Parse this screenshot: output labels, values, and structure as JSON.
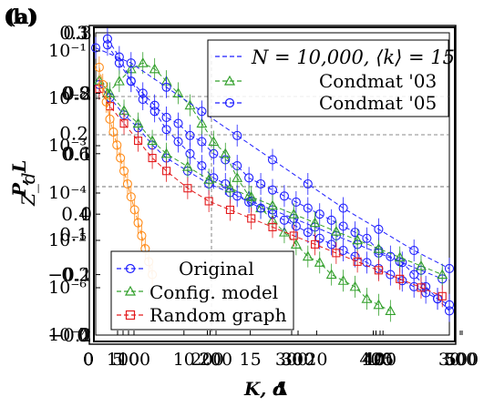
{
  "panel_labels": [
    "(b)",
    "(a)"
  ],
  "chart_data": [
    {
      "type": "line",
      "layer": "Z_d vs d",
      "title": "",
      "xlabel": "d",
      "ylabel": "Z_d",
      "xlim": [
        0,
        30
      ],
      "ylim": [
        -0.2,
        0.3
      ],
      "yticks": [
        "0.3",
        "0.2",
        "0.1",
        "0",
        "−0.1",
        "−0.2"
      ],
      "xticks": [
        "0",
        "5",
        "10",
        "15",
        "20",
        "25",
        "30"
      ],
      "grid": false,
      "legend_loc": "top-right",
      "legend": [
        {
          "label": "N = 10,000, ⟨k⟩ = 15",
          "color": "#1f1fff",
          "marker": "none"
        },
        {
          "label": "Condmat '03",
          "color": "#33a02c",
          "marker": "triangle"
        },
        {
          "label": "Condmat '05",
          "color": "#1f1fff",
          "marker": "circle"
        }
      ],
      "series": [
        {
          "name": "N = 10,000, ⟨k⟩ = 15",
          "color": "#1f1fff",
          "x": [
            1,
            2,
            3,
            4,
            5,
            6,
            7,
            8,
            9,
            10,
            11,
            12,
            13,
            14,
            15,
            16,
            17,
            18,
            19,
            20,
            21,
            22,
            23,
            24,
            25,
            26,
            27,
            28,
            29,
            30
          ],
          "y": [
            0.28,
            0.25,
            0.22,
            0.2,
            0.18,
            0.16,
            0.15,
            0.13,
            0.12,
            0.1,
            0.09,
            0.08,
            0.06,
            0.05,
            0.04,
            0.03,
            0.02,
            0.01,
            0.0,
            -0.01,
            -0.02,
            -0.03,
            -0.04,
            -0.06,
            -0.07,
            -0.08,
            -0.1,
            -0.12,
            -0.14,
            -0.16
          ]
        },
        {
          "name": "Condmat '03",
          "color": "#33a02c",
          "x": [
            1,
            2,
            3,
            4,
            5,
            6,
            7,
            8,
            9,
            10,
            11,
            12,
            13,
            14,
            15,
            16,
            17,
            18,
            19,
            20,
            21,
            22,
            23,
            24,
            25
          ],
          "y": [
            0.2,
            0.22,
            0.24,
            0.25,
            0.24,
            0.22,
            0.2,
            0.18,
            0.15,
            0.12,
            0.1,
            0.06,
            0.03,
            0.01,
            -0.01,
            -0.03,
            -0.05,
            -0.07,
            -0.08,
            -0.1,
            -0.11,
            -0.12,
            -0.14,
            -0.15,
            -0.16
          ]
        },
        {
          "name": "Condmat '05",
          "color": "#1f1fff",
          "x": [
            1,
            2,
            3,
            4,
            5,
            6,
            7,
            8,
            9,
            10,
            11,
            12,
            13,
            14,
            15,
            16,
            17,
            18,
            19,
            20,
            21,
            22,
            23,
            24,
            25,
            26,
            27,
            28,
            29,
            30
          ],
          "y": [
            0.29,
            0.26,
            0.22,
            0.19,
            0.17,
            0.14,
            0.12,
            0.1,
            0.08,
            0.06,
            0.05,
            0.03,
            0.02,
            0.01,
            0.0,
            -0.01,
            -0.02,
            -0.03,
            -0.04,
            -0.05,
            -0.06,
            -0.07,
            -0.08,
            -0.09,
            -0.1,
            -0.11,
            -0.12,
            -0.13,
            -0.14,
            -0.15
          ]
        }
      ]
    },
    {
      "type": "line",
      "layer": "P vs K",
      "title": "",
      "xlabel": "K",
      "ylabel": "P",
      "xlim": [
        0,
        500
      ],
      "ylim_log10": [
        -7,
        0
      ],
      "yticks": [
        "10⁻¹",
        "10⁻²",
        "10⁻³",
        "10⁻⁴",
        "10⁻⁵",
        "10⁻⁶",
        "10⁻⁷"
      ],
      "xticks": [
        "0",
        "100",
        "200",
        "300",
        "400",
        "500"
      ],
      "grid": false,
      "legend_loc": "bottom-left",
      "legend": [
        {
          "label": "Original",
          "color": "#1f1fff",
          "marker": "circle"
        },
        {
          "label": "Config. model",
          "color": "#33a02c",
          "marker": "triangle"
        },
        {
          "label": "Random graph",
          "color": "#e31a1c",
          "marker": "square"
        }
      ],
      "series": [
        {
          "name": "Original",
          "color": "#1f1fff",
          "x": [
            5,
            20,
            40,
            60,
            80,
            100,
            130,
            160,
            190,
            220,
            250,
            280,
            310,
            340,
            370,
            400,
            430,
            460,
            490
          ],
          "y_log10": [
            -1.2,
            -1.5,
            -1.9,
            -2.2,
            -2.6,
            -2.9,
            -3.2,
            -3.5,
            -3.7,
            -3.9,
            -4.1,
            -4.3,
            -4.5,
            -4.7,
            -4.9,
            -5.1,
            -5.3,
            -5.5,
            -5.7
          ]
        },
        {
          "name": "Config. model",
          "color": "#33a02c",
          "x": [
            5,
            20,
            40,
            60,
            80,
            100,
            130,
            160,
            190,
            220,
            250,
            280,
            310,
            340,
            370,
            400,
            430,
            460,
            490
          ],
          "y_log10": [
            -1.1,
            -1.4,
            -1.8,
            -2.1,
            -2.5,
            -2.8,
            -3.1,
            -3.4,
            -3.6,
            -3.8,
            -4.0,
            -4.2,
            -4.4,
            -4.6,
            -4.8,
            -5.0,
            -5.2,
            -5.4,
            -5.6
          ]
        },
        {
          "name": "Random graph",
          "color": "#e31a1c",
          "x": [
            5,
            20,
            40,
            60,
            80,
            100,
            130,
            160,
            190,
            220,
            250,
            280,
            310,
            340,
            370,
            400,
            430,
            460,
            490
          ],
          "y_log10": [
            -1.3,
            -1.7,
            -2.1,
            -2.5,
            -2.9,
            -3.2,
            -3.6,
            -3.9,
            -4.1,
            -4.3,
            -4.5,
            -4.7,
            -4.9,
            -5.1,
            -5.3,
            -5.5,
            -5.7,
            -5.9,
            -6.1
          ]
        },
        {
          "name": "",
          "color": "#ff8c1a",
          "x": [
            5,
            10,
            15,
            20,
            25,
            30,
            35,
            40,
            45,
            50,
            55,
            60,
            65,
            70,
            75,
            80
          ],
          "y_log10": [
            -0.8,
            -1.2,
            -1.6,
            -2.0,
            -2.3,
            -2.6,
            -2.9,
            -3.2,
            -3.5,
            -3.8,
            -4.1,
            -4.4,
            -4.7,
            -5.0,
            -5.3,
            -5.6
          ]
        }
      ]
    },
    {
      "type": "line",
      "layer": "L vs Δ",
      "title": "",
      "xlabel": "Δ",
      "ylabel": "L",
      "xlim": [
        0,
        50
      ],
      "ylim": [
        0,
        1
      ],
      "yticks": [
        "1",
        "0.8",
        "0.6",
        "0.4",
        "0.2",
        "0"
      ],
      "xticks": [
        "0",
        "10",
        "20",
        "30",
        "40",
        "50"
      ],
      "grid": false,
      "series": [
        {
          "name": "",
          "color": "#1f1fff",
          "x": [
            0,
            5,
            10,
            15,
            20,
            25,
            30,
            35,
            40,
            45,
            50
          ],
          "y": [
            0.95,
            0.9,
            0.82,
            0.74,
            0.66,
            0.58,
            0.5,
            0.42,
            0.35,
            0.28,
            0.22
          ]
        }
      ]
    },
    {
      "type": "line",
      "layer": "y vs x",
      "title": "",
      "xlabel": "",
      "ylabel": "y",
      "xlim": [
        0,
        500
      ],
      "ylim": [
        0,
        0.3
      ],
      "yticks": [
        "0.3",
        "0.2",
        "0.1",
        "0"
      ],
      "xticks": [
        "0",
        "100",
        "200",
        "300",
        "400",
        "500"
      ],
      "grid": false,
      "series": []
    }
  ],
  "axis_label_text": {
    "x_main": "K, d",
    "x_delta": "Δ",
    "y_main": "Z_d",
    "y_alt": "P, L"
  }
}
